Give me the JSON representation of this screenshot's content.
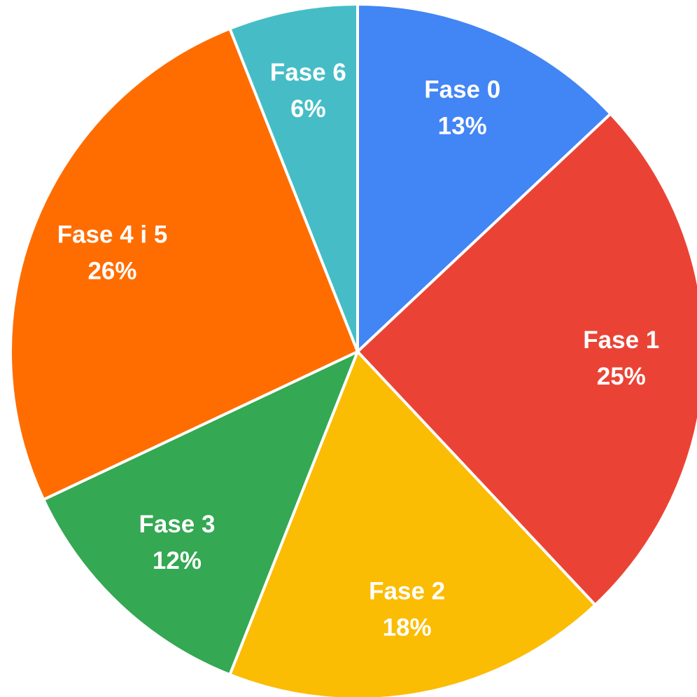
{
  "chart_data": {
    "type": "pie",
    "categories": [
      "Fase 0",
      "Fase 1",
      "Fase 2",
      "Fase 3",
      "Fase 4 i 5",
      "Fase 6"
    ],
    "values": [
      13,
      25,
      18,
      12,
      26,
      6
    ],
    "value_labels": [
      "13%",
      "25%",
      "18%",
      "12%",
      "26%",
      "6%"
    ],
    "colors": [
      "#4285f4",
      "#ea4335",
      "#fbbc04",
      "#34a853",
      "#ff6d01",
      "#46bdc6"
    ]
  }
}
